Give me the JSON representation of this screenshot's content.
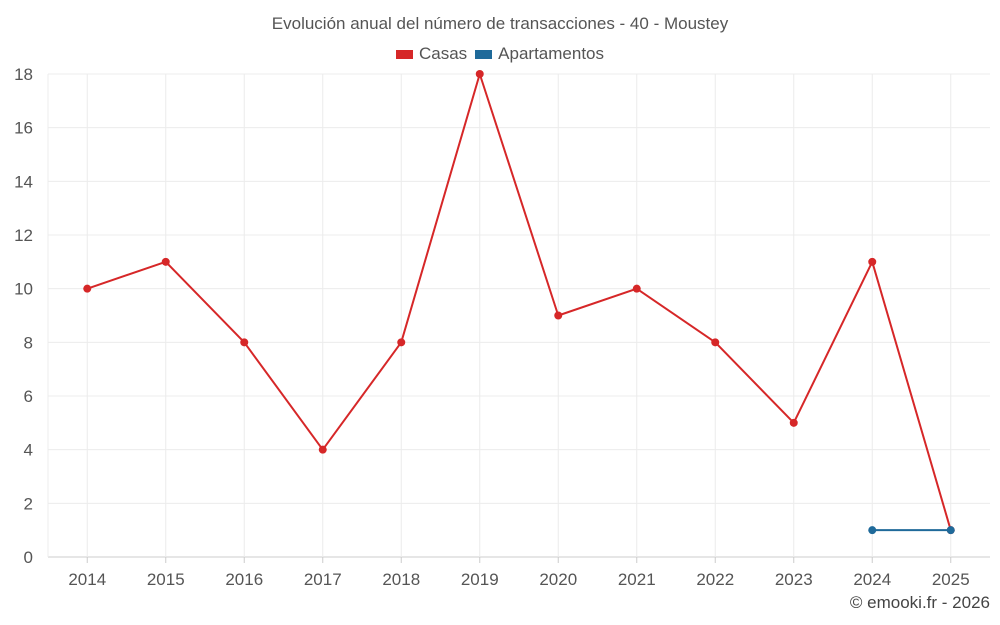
{
  "chart_data": {
    "type": "line",
    "title": "Evolución anual del número de transacciones - 40 - Moustey",
    "xlabel": "",
    "ylabel": "",
    "categories": [
      "2014",
      "2015",
      "2016",
      "2017",
      "2018",
      "2019",
      "2020",
      "2021",
      "2022",
      "2023",
      "2024",
      "2025"
    ],
    "ylim": [
      0,
      18
    ],
    "yticks": [
      0,
      2,
      4,
      6,
      8,
      10,
      12,
      14,
      16,
      18
    ],
    "grid": true,
    "legend": "top-center",
    "series": [
      {
        "name": "Casas",
        "color": "#d62728",
        "values": [
          10,
          11,
          8,
          4,
          8,
          18,
          9,
          10,
          8,
          5,
          11,
          1
        ]
      },
      {
        "name": "Apartamentos",
        "color": "#1f6a9a",
        "values": [
          null,
          null,
          null,
          null,
          null,
          null,
          null,
          null,
          null,
          null,
          1,
          1
        ]
      }
    ]
  },
  "credit": "© emooki.fr - 2026"
}
